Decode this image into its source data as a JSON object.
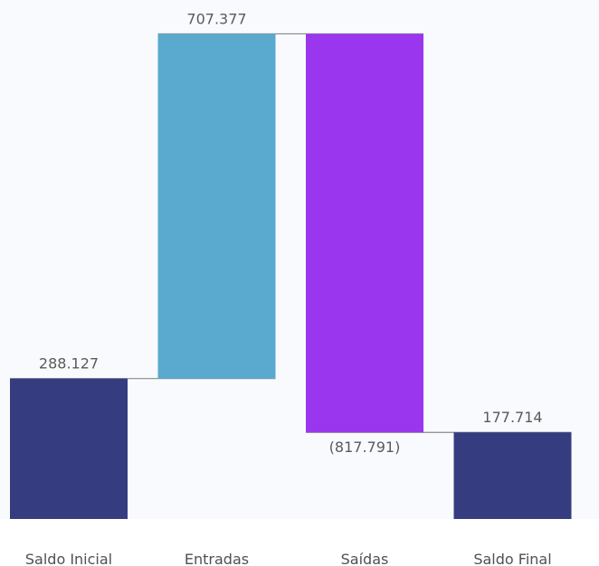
{
  "chart_data": {
    "type": "waterfall",
    "categories": [
      "Saldo Inicial",
      "Entradas",
      "Saídas",
      "Saldo Final"
    ],
    "values": [
      288127,
      707377,
      -817791,
      177714
    ],
    "value_labels": [
      "288.127",
      "707.377",
      "(817.791)",
      "177.714"
    ],
    "kinds": [
      "total",
      "increase",
      "decrease",
      "total"
    ],
    "colors": {
      "total": "#353d80",
      "increase": "#5aa9ce",
      "decrease": "#9b36ef",
      "connector": "#8a8a8a",
      "band": "#f3f6fb"
    },
    "grid": false,
    "legend": "none"
  }
}
